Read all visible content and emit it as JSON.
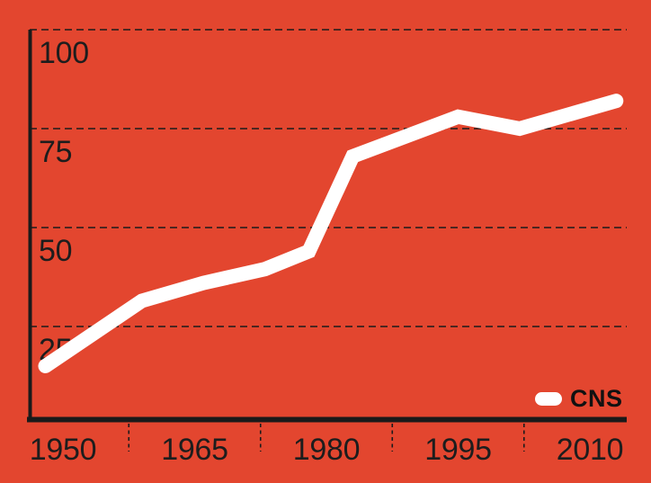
{
  "chart_data": {
    "type": "line",
    "title": "",
    "legend": {
      "label": "CNS",
      "position": "bottom-right-inside-plot"
    },
    "x_ticks": [
      1950,
      1965,
      1980,
      1995,
      2010
    ],
    "x_minor_ticks": [
      1957.5,
      1972.5,
      1987.5,
      2002.5
    ],
    "y_ticks": [
      25,
      50,
      75,
      100
    ],
    "xlim": [
      1946,
      2017
    ],
    "ylim": [
      0,
      103
    ],
    "grid": "horizontal-dashed",
    "series": [
      {
        "name": "CNS",
        "color": "#ffffff",
        "points": [
          [
            1948,
            15
          ],
          [
            1959,
            31.5
          ],
          [
            1966,
            36
          ],
          [
            1973,
            39.5
          ],
          [
            1978,
            44
          ],
          [
            1983,
            68
          ],
          [
            1995,
            78
          ],
          [
            2002,
            75
          ],
          [
            2013,
            82
          ]
        ]
      }
    ],
    "colors": {
      "background": "#e3462f",
      "axis": "#1a1a1a",
      "grid": "#1b1b1b",
      "text": "#1d1d1d",
      "line": "#ffffff"
    }
  }
}
